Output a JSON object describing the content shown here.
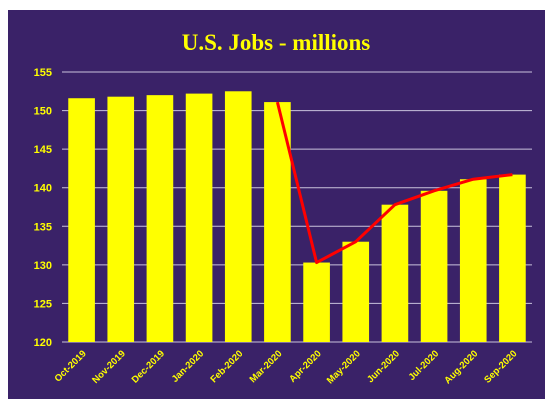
{
  "chart_data": {
    "type": "bar",
    "title": "U.S. Jobs - millions",
    "categories": [
      "Oct-2019",
      "Nov-2019",
      "Dec-2019",
      "Jan-2020",
      "Feb-2020",
      "Mar-2020",
      "Apr-2020",
      "May-2020",
      "Jun-2020",
      "Jul-2020",
      "Aug-2020",
      "Sep-2020"
    ],
    "series": [
      {
        "type": "bar",
        "values": [
          151.6,
          151.8,
          152.0,
          152.2,
          152.5,
          151.1,
          130.3,
          133.0,
          137.8,
          139.6,
          141.1,
          141.7
        ]
      },
      {
        "type": "line",
        "values": [
          null,
          null,
          null,
          null,
          null,
          151.1,
          130.3,
          133.0,
          137.8,
          139.6,
          141.1,
          141.7
        ]
      }
    ],
    "y_ticks": [
      120,
      125,
      130,
      135,
      140,
      145,
      150,
      155
    ],
    "ylim": [
      120,
      155
    ],
    "grid": true,
    "legend": "none",
    "colors": {
      "background": "#3a2268",
      "bar": "#ffff00",
      "line": "#ff0000",
      "grid": "#c9c3dc",
      "text": "#ffff00"
    }
  }
}
